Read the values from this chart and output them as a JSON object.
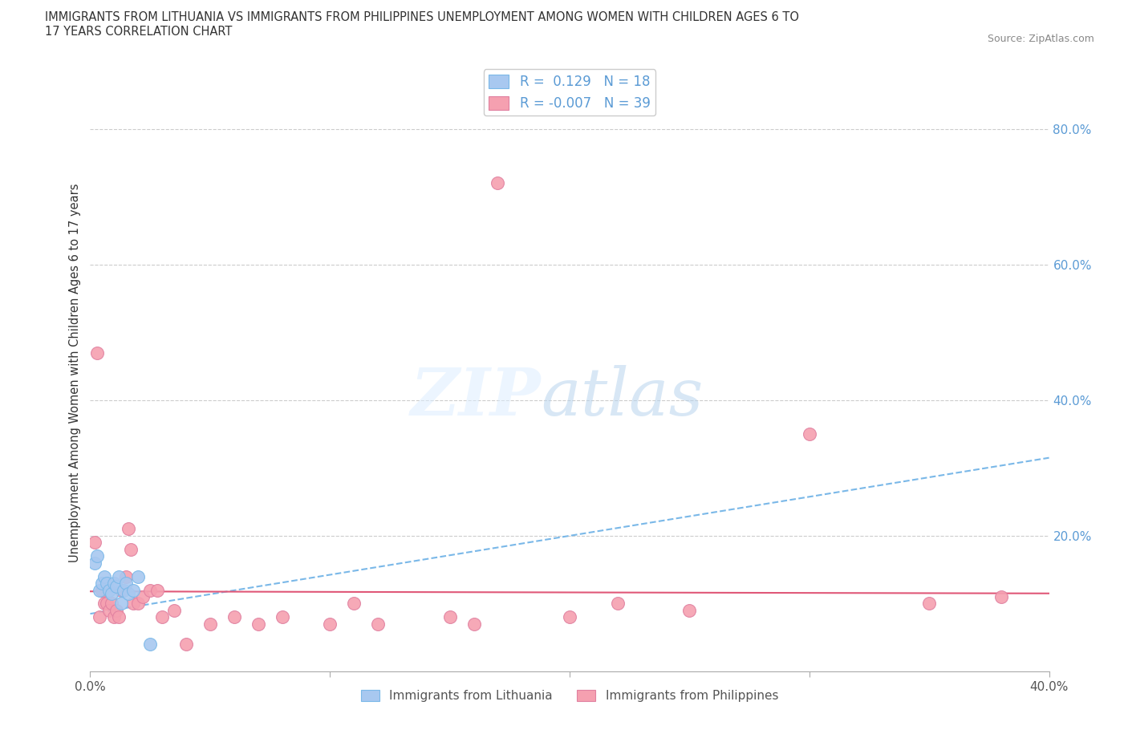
{
  "title": "IMMIGRANTS FROM LITHUANIA VS IMMIGRANTS FROM PHILIPPINES UNEMPLOYMENT AMONG WOMEN WITH CHILDREN AGES 6 TO\n17 YEARS CORRELATION CHART",
  "source": "Source: ZipAtlas.com",
  "ylabel": "Unemployment Among Women with Children Ages 6 to 17 years",
  "xlim": [
    0.0,
    0.4
  ],
  "ylim": [
    0.0,
    0.88
  ],
  "yticks_right": [
    0.2,
    0.4,
    0.6,
    0.8
  ],
  "ytick_right_labels": [
    "20.0%",
    "40.0%",
    "60.0%",
    "80.0%"
  ],
  "legend_label1": "Immigrants from Lithuania",
  "legend_label2": "Immigrants from Philippines",
  "color_lithuania": "#a8c8f0",
  "color_philippines": "#f5a0b0",
  "color_trend_lithuania": "#7ab8e8",
  "color_trend_philippines": "#e05878",
  "background_color": "#ffffff",
  "lithuania_x": [
    0.002,
    0.003,
    0.004,
    0.005,
    0.006,
    0.007,
    0.008,
    0.009,
    0.01,
    0.011,
    0.012,
    0.013,
    0.014,
    0.015,
    0.016,
    0.018,
    0.02,
    0.025
  ],
  "lithuania_y": [
    0.16,
    0.17,
    0.12,
    0.13,
    0.14,
    0.13,
    0.12,
    0.115,
    0.13,
    0.125,
    0.14,
    0.1,
    0.12,
    0.13,
    0.115,
    0.12,
    0.14,
    0.04
  ],
  "philippines_x": [
    0.002,
    0.003,
    0.004,
    0.005,
    0.006,
    0.007,
    0.008,
    0.009,
    0.01,
    0.011,
    0.012,
    0.013,
    0.015,
    0.016,
    0.017,
    0.018,
    0.02,
    0.022,
    0.025,
    0.028,
    0.03,
    0.035,
    0.04,
    0.05,
    0.06,
    0.07,
    0.08,
    0.1,
    0.11,
    0.12,
    0.15,
    0.16,
    0.17,
    0.2,
    0.22,
    0.25,
    0.3,
    0.35,
    0.38
  ],
  "philippines_y": [
    0.19,
    0.47,
    0.08,
    0.12,
    0.1,
    0.1,
    0.09,
    0.1,
    0.08,
    0.09,
    0.08,
    0.12,
    0.14,
    0.21,
    0.18,
    0.1,
    0.1,
    0.11,
    0.12,
    0.12,
    0.08,
    0.09,
    0.04,
    0.07,
    0.08,
    0.07,
    0.08,
    0.07,
    0.1,
    0.07,
    0.08,
    0.07,
    0.72,
    0.08,
    0.1,
    0.09,
    0.35,
    0.1,
    0.11
  ],
  "R_lithuania": 0.129,
  "R_philippines": -0.007,
  "N_lithuania": 18,
  "N_philippines": 39,
  "trend_lith_x0": 0.0,
  "trend_lith_y0": 0.085,
  "trend_lith_x1": 0.4,
  "trend_lith_y1": 0.315,
  "trend_phil_x0": 0.0,
  "trend_phil_y0": 0.118,
  "trend_phil_x1": 0.4,
  "trend_phil_y1": 0.115
}
